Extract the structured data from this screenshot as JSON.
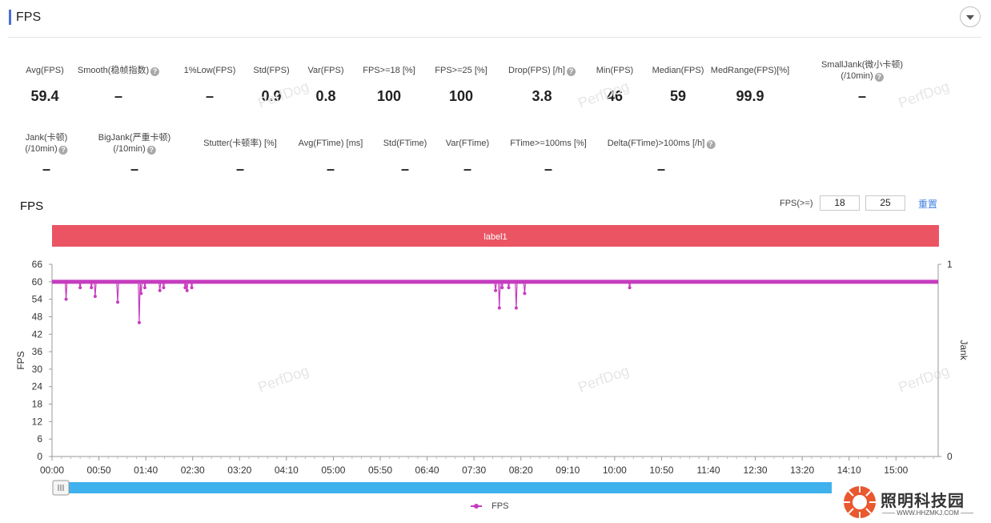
{
  "header": {
    "title": "FPS"
  },
  "metrics_row1": [
    {
      "label": "Avg(FPS)",
      "value": "59.4",
      "help": false
    },
    {
      "label": "Smooth(稳帧指数)",
      "value": "–",
      "help": true
    },
    {
      "label": "1%Low(FPS)",
      "value": "–",
      "help": false
    },
    {
      "label": "Std(FPS)",
      "value": "0.9",
      "help": false
    },
    {
      "label": "Var(FPS)",
      "value": "0.8",
      "help": false
    },
    {
      "label": "FPS>=18 [%]",
      "value": "100",
      "help": false
    },
    {
      "label": "FPS>=25 [%]",
      "value": "100",
      "help": false
    },
    {
      "label": "Drop(FPS) [/h]",
      "value": "3.8",
      "help": true
    },
    {
      "label": "Min(FPS)",
      "value": "46",
      "help": false
    },
    {
      "label": "Median(FPS)",
      "value": "59",
      "help": false
    },
    {
      "label": "MedRange(FPS)[%]",
      "value": "99.9",
      "help": false
    },
    {
      "label": "SmallJank(微小卡顿)",
      "label2": "(/10min)",
      "value": "–",
      "help": true
    }
  ],
  "metrics_row2": [
    {
      "label": "Jank(卡顿)",
      "label2": "(/10min)",
      "value": "–",
      "help": true
    },
    {
      "label": "BigJank(严重卡顿)",
      "label2": "(/10min)",
      "value": "–",
      "help": true
    },
    {
      "label": "Stutter(卡顿率) [%]",
      "value": "–",
      "help": false
    },
    {
      "label": "Avg(FTime) [ms]",
      "value": "–",
      "help": false
    },
    {
      "label": "Std(FTime)",
      "value": "–",
      "help": false
    },
    {
      "label": "Var(FTime)",
      "value": "–",
      "help": false
    },
    {
      "label": "FTime>=100ms [%]",
      "value": "–",
      "help": false
    },
    {
      "label": "Delta(FTime)>100ms [/h]",
      "value": "–",
      "help": true
    }
  ],
  "chart_section": {
    "title": "FPS",
    "threshold_label": "FPS(>=)",
    "threshold_1": "18",
    "threshold_2": "25",
    "reset_label": "重置"
  },
  "watermark": "PerfDog",
  "brand": {
    "name": "照明科技园",
    "sub": "—— WWW.HHZMKJ.COM ——"
  },
  "colors": {
    "series": "#c63cbf",
    "label_band": "#eb5563",
    "slider": "#3fb1ec"
  },
  "chart_data": {
    "type": "line",
    "title": "FPS",
    "band_label": "label1",
    "xlabel": "",
    "ylabel": "FPS",
    "y2label": "Jank",
    "ylim": [
      0,
      66
    ],
    "y2lim": [
      0,
      1
    ],
    "yticks": [
      "0",
      "6",
      "12",
      "18",
      "24",
      "30",
      "36",
      "42",
      "48",
      "54",
      "60",
      "66"
    ],
    "y2ticks": [
      "0",
      "1"
    ],
    "xticks": [
      "00:00",
      "00:50",
      "01:40",
      "02:30",
      "03:20",
      "04:10",
      "05:00",
      "05:50",
      "06:40",
      "07:30",
      "08:20",
      "09:10",
      "10:00",
      "10:50",
      "11:40",
      "12:30",
      "13:20",
      "14:10",
      "15:00"
    ],
    "x_range_s": [
      0,
      945
    ],
    "baseline": 60,
    "legend": [
      "FPS"
    ],
    "series": [
      {
        "name": "FPS",
        "dips": [
          {
            "t": 15,
            "v": 54
          },
          {
            "t": 30,
            "v": 58
          },
          {
            "t": 42,
            "v": 58
          },
          {
            "t": 46,
            "v": 55
          },
          {
            "t": 70,
            "v": 53
          },
          {
            "t": 93,
            "v": 46
          },
          {
            "t": 95,
            "v": 56
          },
          {
            "t": 99,
            "v": 58
          },
          {
            "t": 115,
            "v": 57
          },
          {
            "t": 119,
            "v": 58
          },
          {
            "t": 142,
            "v": 58
          },
          {
            "t": 144,
            "v": 57
          },
          {
            "t": 149,
            "v": 58
          },
          {
            "t": 473,
            "v": 57
          },
          {
            "t": 477,
            "v": 51
          },
          {
            "t": 480,
            "v": 58
          },
          {
            "t": 487,
            "v": 58
          },
          {
            "t": 495,
            "v": 51
          },
          {
            "t": 504,
            "v": 56
          },
          {
            "t": 616,
            "v": 58
          }
        ]
      }
    ]
  }
}
